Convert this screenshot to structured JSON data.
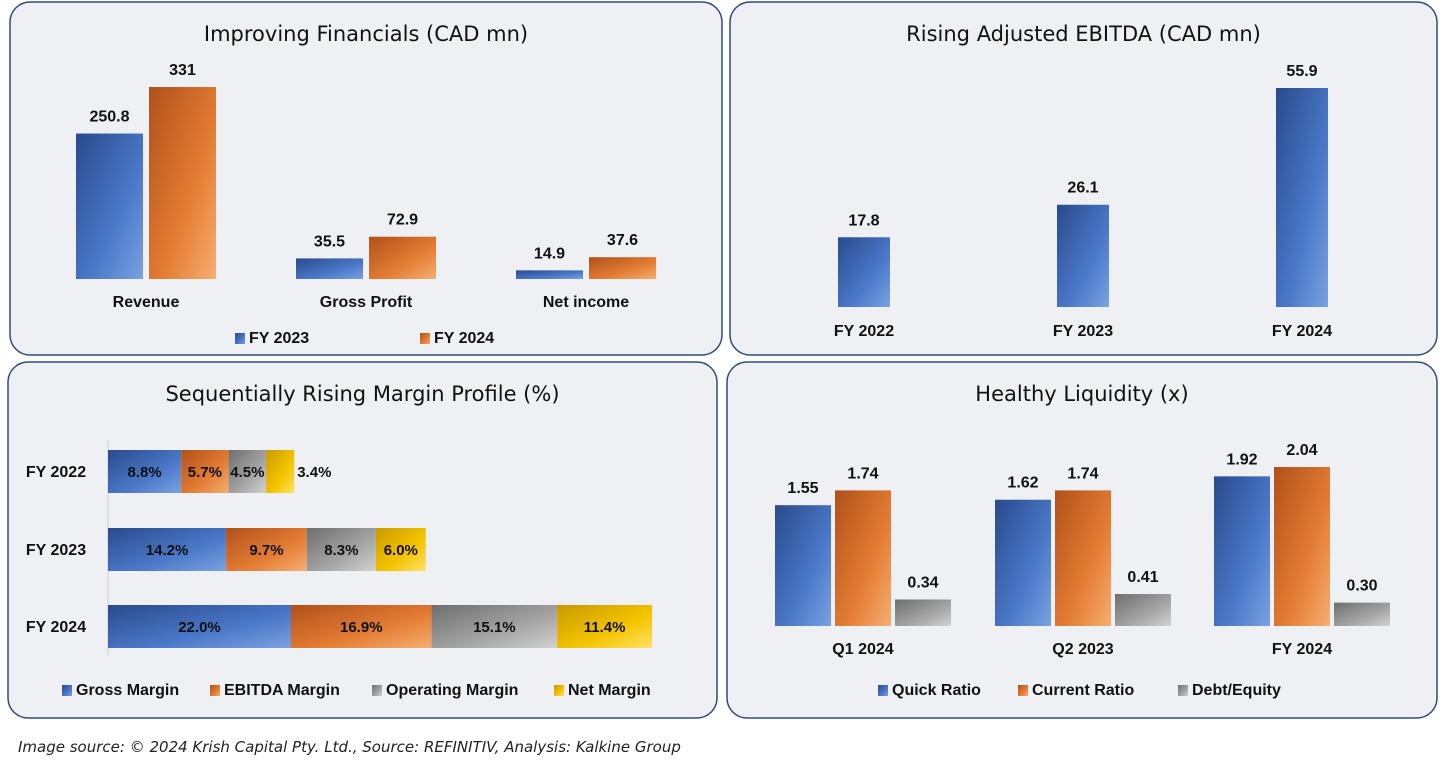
{
  "colors": {
    "blue": "#3a64b0",
    "orange": "#e07a2e",
    "gray": "#9a9a9a",
    "gold": "#f2c200",
    "panel_border": "#2f4b7c",
    "panel_bg": "#eef0f4"
  },
  "chart_data": [
    {
      "type": "bar",
      "title": "Improving Financials (CAD mn)",
      "categories": [
        "Revenue",
        "Gross Profit",
        "Net income"
      ],
      "series": [
        {
          "name": "FY 2023",
          "values": [
            250.8,
            35.5,
            14.9
          ],
          "color": "blue"
        },
        {
          "name": "FY 2024",
          "values": [
            331,
            72.9,
            37.6
          ],
          "color": "orange"
        }
      ],
      "legend": "bottom",
      "grid": false
    },
    {
      "type": "bar",
      "title": "Rising Adjusted EBITDA (CAD mn)",
      "categories": [
        "FY 2022",
        "FY 2023",
        "FY 2024"
      ],
      "series": [
        {
          "values": [
            17.8,
            26.1,
            55.9
          ],
          "color": "blue"
        }
      ],
      "grid": false
    },
    {
      "type": "bar",
      "orientation": "horizontal-stacked",
      "title": "Sequentially Rising Margin Profile (%)",
      "categories": [
        "FY 2022",
        "FY 2023",
        "FY 2024"
      ],
      "series": [
        {
          "name": "Gross Margin",
          "values": [
            8.8,
            14.2,
            22.0
          ],
          "labels": [
            "8.8%",
            "14.2%",
            "22.0%"
          ],
          "color": "blue"
        },
        {
          "name": "EBITDA Margin",
          "values": [
            5.7,
            9.7,
            16.9
          ],
          "labels": [
            "5.7%",
            "9.7%",
            "16.9%"
          ],
          "color": "orange"
        },
        {
          "name": "Operating Margin",
          "values": [
            4.5,
            8.3,
            15.1
          ],
          "labels": [
            "4.5%",
            "8.3%",
            "15.1%"
          ],
          "color": "gray"
        },
        {
          "name": "Net Margin",
          "values": [
            3.4,
            6.0,
            11.4
          ],
          "labels": [
            "3.4%",
            "6.0%",
            "11.4%"
          ],
          "color": "gold"
        }
      ],
      "legend": "bottom",
      "grid": false
    },
    {
      "type": "bar",
      "title": "Healthy Liquidity (x)",
      "categories": [
        "Q1 2024",
        "Q2 2023",
        "FY 2024"
      ],
      "series": [
        {
          "name": "Quick Ratio",
          "values": [
            1.55,
            1.62,
            1.92
          ],
          "labels": [
            "1.55",
            "1.62",
            "1.92"
          ],
          "color": "blue"
        },
        {
          "name": "Current Ratio",
          "values": [
            1.74,
            1.74,
            2.04
          ],
          "labels": [
            "1.74",
            "1.74",
            "2.04"
          ],
          "color": "orange"
        },
        {
          "name": "Debt/Equity",
          "values": [
            0.34,
            0.41,
            0.3
          ],
          "labels": [
            "0.34",
            "0.41",
            "0.30"
          ],
          "color": "gray"
        }
      ],
      "legend": "bottom",
      "grid": false
    }
  ],
  "caption": "Image source: © 2024 Krish Capital Pty. Ltd., Source: REFINITIV, Analysis: Kalkine Group"
}
